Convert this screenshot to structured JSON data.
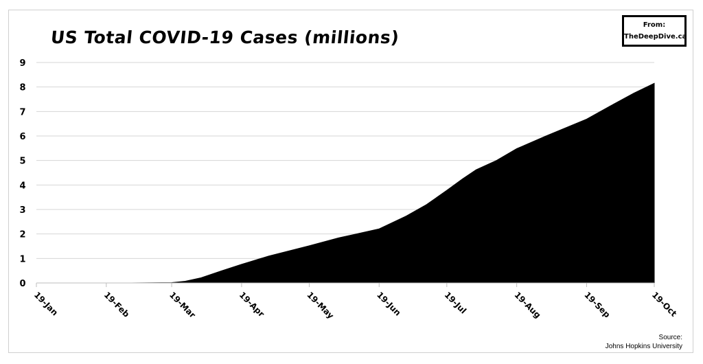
{
  "chart_data": {
    "type": "area",
    "title": "US Total COVID-19 Cases (millions)",
    "xlabel": "",
    "ylabel": "",
    "ylim": [
      0,
      9
    ],
    "yticks": [
      "0",
      "1",
      "2",
      "3",
      "4",
      "5",
      "6",
      "7",
      "8",
      "9"
    ],
    "xticks": [
      "19-Jan",
      "19-Feb",
      "19-Mar",
      "19-Apr",
      "19-May",
      "19-Jun",
      "19-Jul",
      "19-Aug",
      "19-Sep",
      "19-Oct"
    ],
    "xlim": [
      "2020-01-19",
      "2020-10-19"
    ],
    "grid": "horizontal",
    "legend": "none",
    "fill_color": "#000000",
    "series": [
      {
        "x": [
          "2020-01-19",
          "2020-02-19",
          "2020-03-01",
          "2020-03-19",
          "2020-03-25",
          "2020-04-01",
          "2020-04-10",
          "2020-04-19",
          "2020-05-01",
          "2020-05-19",
          "2020-06-01",
          "2020-06-19",
          "2020-07-01",
          "2020-07-10",
          "2020-07-19",
          "2020-07-26",
          "2020-08-01",
          "2020-08-10",
          "2020-08-19",
          "2020-09-01",
          "2020-09-19",
          "2020-10-01",
          "2020-10-10",
          "2020-10-19"
        ],
        "values": [
          0,
          0,
          7e-05,
          0.014,
          0.07,
          0.21,
          0.49,
          0.76,
          1.1,
          1.52,
          1.84,
          2.21,
          2.73,
          3.2,
          3.78,
          4.25,
          4.62,
          5.0,
          5.48,
          6.0,
          6.69,
          7.3,
          7.75,
          8.15
        ]
      }
    ]
  },
  "credit": {
    "from_label": "From:",
    "site": "TheDeepDive.ca"
  },
  "source": {
    "label": "Source:",
    "name": "Johns Hopkins University"
  }
}
